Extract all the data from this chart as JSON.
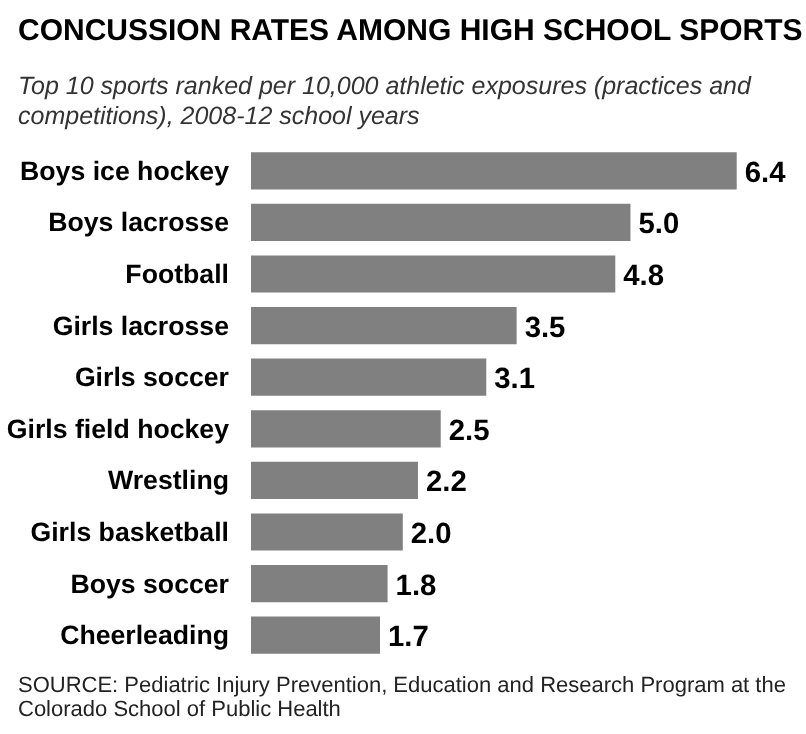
{
  "chart_data": {
    "type": "bar",
    "orientation": "horizontal",
    "title": "CONCUSSION RATES AMONG HIGH SCHOOL SPORTS",
    "subtitle": "Top 10 sports ranked per 10,000 athletic exposures (practices and competitions), 2008-12 school years",
    "categories": [
      "Boys ice hockey",
      "Boys lacrosse",
      "Football",
      "Girls lacrosse",
      "Girls soccer",
      "Girls field hockey",
      "Wrestling",
      "Girls basketball",
      "Boys soccer",
      "Cheerleading"
    ],
    "values": [
      6.4,
      5.0,
      4.8,
      3.5,
      3.1,
      2.5,
      2.2,
      2.0,
      1.8,
      1.7
    ],
    "value_labels": [
      "6.4",
      "5.0",
      "4.8",
      "3.5",
      "3.1",
      "2.5",
      "2.2",
      "2.0",
      "1.8",
      "1.7"
    ],
    "color": "#808080",
    "annotations": [
      "SOURCE: Pediatric Injury Prevention, Education and Research Program at the Colorado School of Public Health"
    ]
  }
}
